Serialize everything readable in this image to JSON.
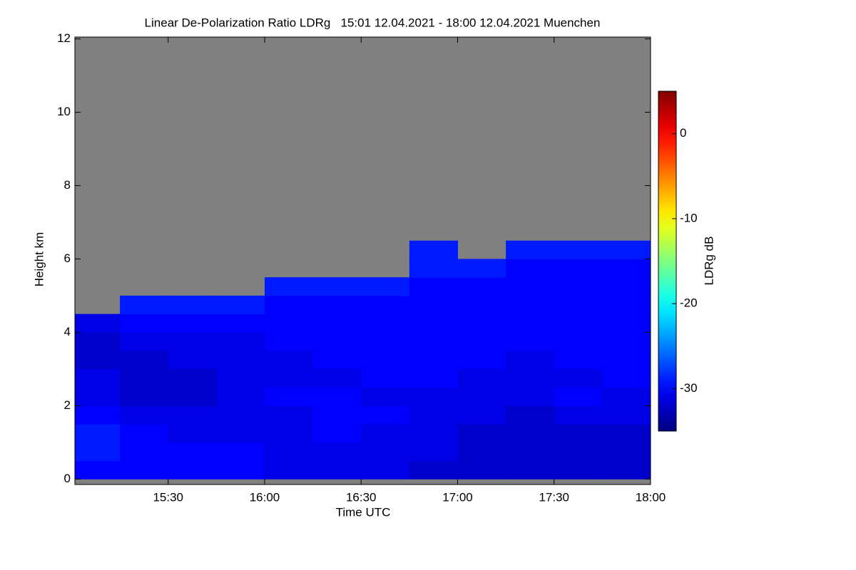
{
  "chart_data": {
    "type": "heatmap",
    "title": "Linear De-Polarization Ratio LDRg   15:01 12.04.2021 - 18:00 12.04.2021 Muenchen",
    "x_label": "Time UTC",
    "y_label": "Height km",
    "colorbar_label": "LDRg dB",
    "colormap": "jet",
    "missing_color": "#808080",
    "x_edges": [
      15.0167,
      15.25,
      15.5,
      15.75,
      16.0,
      16.25,
      16.5,
      16.75,
      17.0,
      17.25,
      17.5,
      17.75,
      18.0
    ],
    "y_edges": [
      0,
      0.5,
      1.0,
      1.5,
      2.0,
      2.5,
      3.0,
      3.5,
      4.0,
      4.5,
      5.0,
      5.5,
      6.0,
      6.5
    ],
    "z": [
      [
        -30,
        -30,
        -30,
        -30,
        -31,
        -31,
        -31,
        -32,
        -32,
        -32,
        -32,
        -32
      ],
      [
        -29,
        -30,
        -30,
        -30,
        -31,
        -31,
        -31,
        -31,
        -32,
        -32,
        -32,
        -32
      ],
      [
        -29,
        -30,
        -31,
        -31,
        -31,
        -30,
        -31,
        -31,
        -32,
        -32,
        -32,
        -32
      ],
      [
        -30,
        -31,
        -31,
        -31,
        -31,
        -30,
        -30,
        -31,
        -31,
        -32,
        -31,
        -31
      ],
      [
        -31,
        -32,
        -32,
        -31,
        -30,
        -30,
        -31,
        -31,
        -31,
        -31,
        -30,
        -31
      ],
      [
        -31,
        -32,
        -32,
        -31,
        -31,
        -31,
        -30,
        -30,
        -31,
        -31,
        -31,
        -30
      ],
      [
        -32,
        -32,
        -31,
        -31,
        -31,
        -30,
        -30,
        -30,
        -30,
        -31,
        -30,
        -30
      ],
      [
        -32,
        -31,
        -31,
        -31,
        -30,
        -30,
        -30,
        -30,
        -30,
        -30,
        -30,
        -30
      ],
      [
        -31,
        -30,
        -30,
        -30,
        -30,
        -30,
        -30,
        -30,
        -30,
        -30,
        -30,
        -30
      ],
      [
        null,
        -29,
        -29,
        -29,
        -30,
        -30,
        -30,
        -30,
        -30,
        -30,
        -30,
        -30
      ],
      [
        null,
        null,
        null,
        null,
        -29,
        -29,
        -29,
        -30,
        -30,
        -30,
        -30,
        -30
      ],
      [
        null,
        null,
        null,
        null,
        null,
        null,
        null,
        -29,
        -29,
        -30,
        -30,
        -30
      ],
      [
        null,
        null,
        null,
        null,
        null,
        null,
        null,
        -29,
        null,
        -29,
        -29,
        -29
      ]
    ],
    "xlim": [
      15.0167,
      18.0
    ],
    "xticks": [
      {
        "value": 15.5,
        "label": "15:30"
      },
      {
        "value": 16.0,
        "label": "16:00"
      },
      {
        "value": 16.5,
        "label": "16:30"
      },
      {
        "value": 17.0,
        "label": "17:00"
      },
      {
        "value": 17.5,
        "label": "17:30"
      },
      {
        "value": 18.0,
        "label": "18:00"
      }
    ],
    "ylim": [
      -0.15,
      12.05
    ],
    "yticks": [
      0,
      2,
      4,
      6,
      8,
      10,
      12
    ],
    "zlim": [
      -35,
      5
    ],
    "zticks": [
      0,
      -10,
      -20,
      -30
    ]
  }
}
